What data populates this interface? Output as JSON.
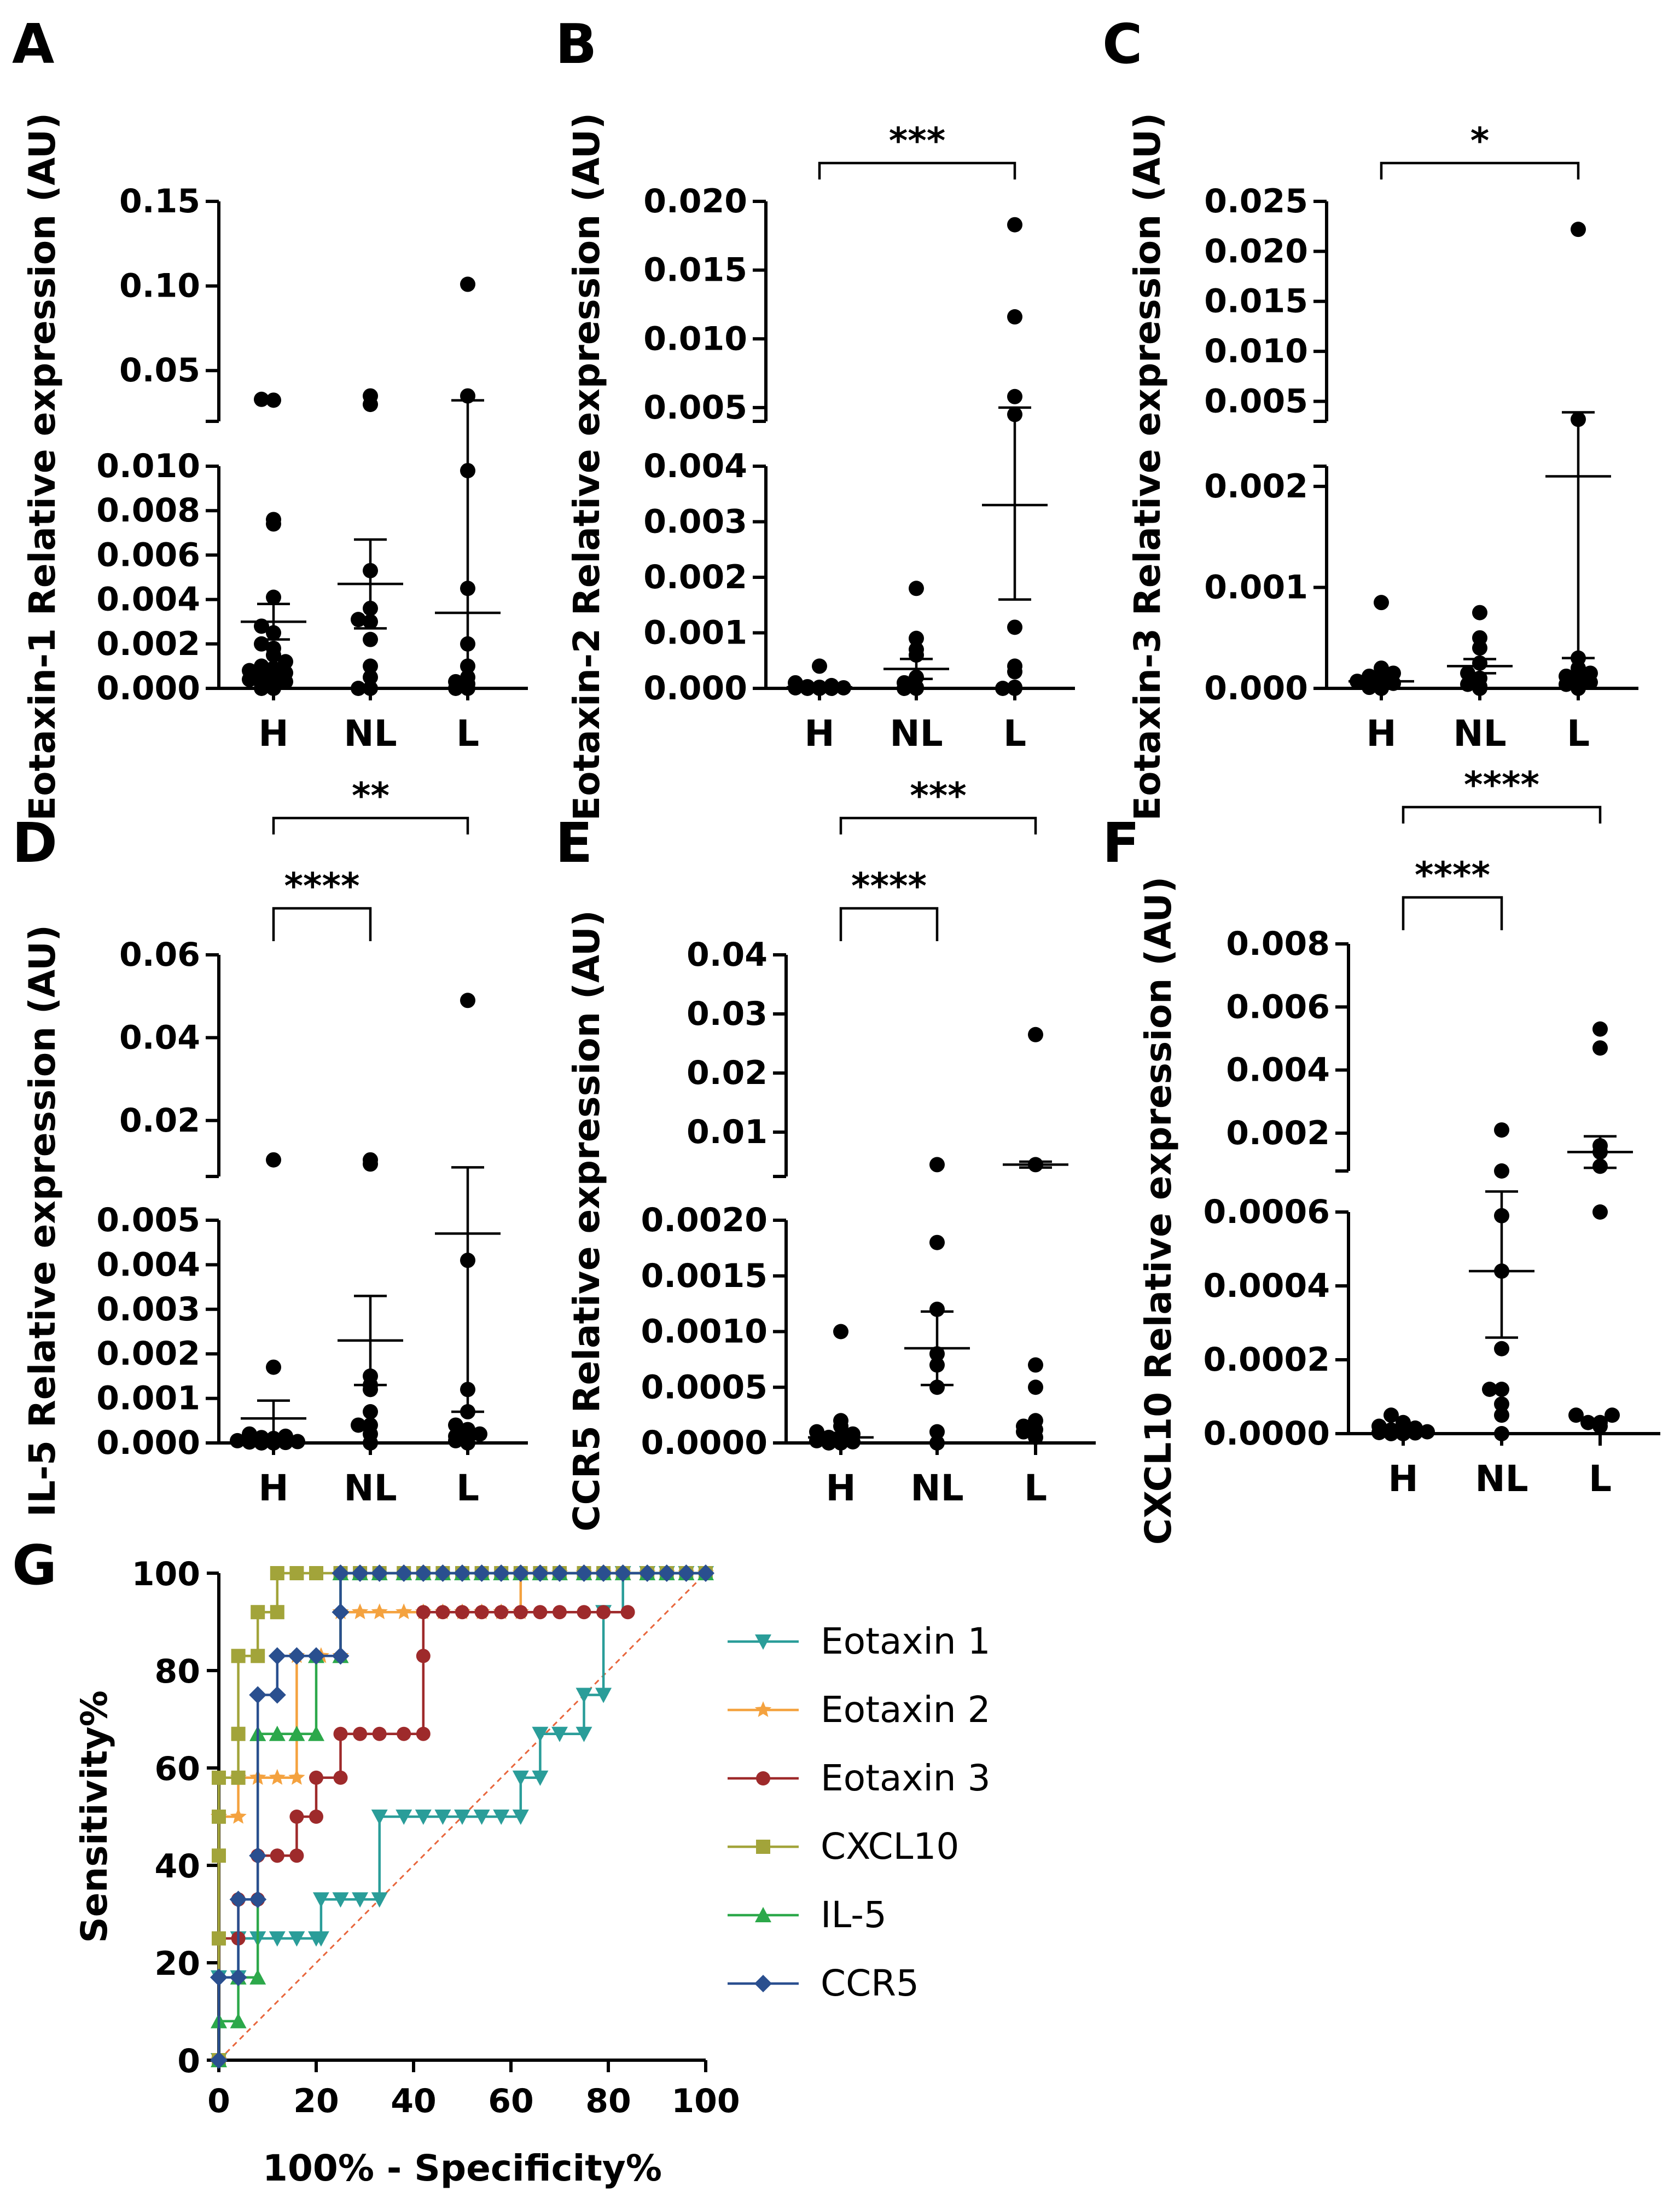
{
  "chart_data": [
    {
      "panel": "A",
      "type": "scatter",
      "ylabel": "Eotaxin-1 Relative expression (AU)",
      "categories": [
        "H",
        "NL",
        "L"
      ],
      "lower": {
        "ylim": [
          0,
          0.01
        ],
        "ticks": [
          0.0,
          0.002,
          0.004,
          0.006,
          0.008,
          0.01
        ],
        "tick_labels": [
          "0.000",
          "0.002",
          "0.004",
          "0.006",
          "0.008",
          "0.010"
        ]
      },
      "upper": {
        "ylim": [
          0.02,
          0.15
        ],
        "ticks": [
          0.05,
          0.1,
          0.15
        ],
        "tick_labels": [
          "0.05",
          "0.10",
          "0.15"
        ]
      },
      "groups": [
        {
          "category": "H",
          "mean": 0.003,
          "sem": 0.0008,
          "points": [
            0.0,
            0.0,
            0.0001,
            0.0002,
            0.0003,
            0.0004,
            0.0005,
            0.0006,
            0.0007,
            0.0008,
            0.0009,
            0.001,
            0.0012,
            0.0015,
            0.0018,
            0.002,
            0.0025,
            0.0028,
            0.0041,
            0.0074,
            0.0076,
            0.0325,
            0.033
          ]
        },
        {
          "category": "NL",
          "mean": 0.0047,
          "sem": 0.002,
          "points": [
            0.0,
            0.0,
            0.0005,
            0.001,
            0.0022,
            0.003,
            0.0031,
            0.0036,
            0.0053,
            0.03,
            0.035
          ]
        },
        {
          "category": "L",
          "mean": 0.0034,
          "sem": 0.029,
          "points": [
            0.0,
            0.0,
            0.0002,
            0.0003,
            0.0005,
            0.001,
            0.002,
            0.0045,
            0.0098,
            0.035,
            0.101
          ]
        }
      ],
      "significance": []
    },
    {
      "panel": "B",
      "type": "scatter",
      "ylabel": "Eotaxin-2 Relative expression (AU)",
      "categories": [
        "H",
        "NL",
        "L"
      ],
      "lower": {
        "ylim": [
          0,
          0.004
        ],
        "ticks": [
          0.0,
          0.001,
          0.002,
          0.003,
          0.004
        ],
        "tick_labels": [
          "0.000",
          "0.001",
          "0.002",
          "0.003",
          "0.004"
        ]
      },
      "upper": {
        "ylim": [
          0.004,
          0.02
        ],
        "ticks": [
          0.005,
          0.01,
          0.015,
          0.02
        ],
        "tick_labels": [
          "0.005",
          "0.010",
          "0.015",
          "0.020"
        ]
      },
      "groups": [
        {
          "category": "H",
          "mean": 2e-05,
          "sem": 3e-05,
          "points": [
            0.0,
            0.0,
            0.0,
            1e-05,
            1e-05,
            2e-05,
            3e-05,
            5e-05,
            0.0001,
            0.0004
          ]
        },
        {
          "category": "NL",
          "mean": 0.00035,
          "sem": 0.00018,
          "points": [
            0.0,
            0.0,
            2e-05,
            0.0001,
            0.0002,
            0.0006,
            0.0007,
            0.0009,
            0.0018
          ]
        },
        {
          "category": "L",
          "mean": 0.0033,
          "sem": 0.0017,
          "points": [
            0.0,
            0.0,
            2e-05,
            0.0003,
            0.0004,
            0.0011,
            0.0045,
            0.0058,
            0.0116,
            0.0183
          ]
        }
      ],
      "significance": [
        {
          "from": "H",
          "to": "L",
          "label": "***"
        }
      ]
    },
    {
      "panel": "C",
      "type": "scatter",
      "ylabel": "Eotaxin-3 Relative expression (AU)",
      "categories": [
        "H",
        "NL",
        "L"
      ],
      "lower": {
        "ylim": [
          0,
          0.0022
        ],
        "ticks": [
          0.0,
          0.001,
          0.002
        ],
        "tick_labels": [
          "0.000",
          "0.001",
          "0.002"
        ]
      },
      "upper": {
        "ylim": [
          0.003,
          0.025
        ],
        "ticks": [
          0.005,
          0.01,
          0.015,
          0.02,
          0.025
        ],
        "tick_labels": [
          "0.005",
          "0.010",
          "0.015",
          "0.020",
          "0.025"
        ]
      },
      "groups": [
        {
          "category": "H",
          "mean": 7e-05,
          "sem": 4e-05,
          "points": [
            0.0,
            1e-05,
            2e-05,
            3e-05,
            5e-05,
            7e-05,
            0.0001,
            0.00012,
            0.00015,
            0.0002,
            0.00085
          ]
        },
        {
          "category": "NL",
          "mean": 0.00022,
          "sem": 7e-05,
          "points": [
            0.0,
            2e-05,
            4e-05,
            0.0001,
            0.00015,
            0.00025,
            0.0004,
            0.0005,
            0.00075
          ]
        },
        {
          "category": "L",
          "mean": 0.0021,
          "sem": 0.0018,
          "points": [
            0.0,
            2e-05,
            4e-05,
            6e-05,
            0.0001,
            0.00012,
            0.00015,
            0.0002,
            0.0003,
            0.0032,
            0.0222
          ]
        }
      ],
      "significance": [
        {
          "from": "H",
          "to": "L",
          "label": "*"
        }
      ]
    },
    {
      "panel": "D",
      "type": "scatter",
      "ylabel": "IL-5 Relative expression (AU)",
      "categories": [
        "H",
        "NL",
        "L"
      ],
      "lower": {
        "ylim": [
          0,
          0.005
        ],
        "ticks": [
          0.0,
          0.001,
          0.002,
          0.003,
          0.004,
          0.005
        ],
        "tick_labels": [
          "0.000",
          "0.001",
          "0.002",
          "0.003",
          "0.004",
          "0.005"
        ]
      },
      "upper": {
        "ylim": [
          0.0065,
          0.06
        ],
        "ticks": [
          0.02,
          0.04,
          0.06
        ],
        "tick_labels": [
          "0.02",
          "0.04",
          "0.06"
        ]
      },
      "groups": [
        {
          "category": "H",
          "mean": 0.00055,
          "sem": 0.0004,
          "points": [
            0.0,
            0.0,
            1e-05,
            2e-05,
            3e-05,
            5e-05,
            0.0001,
            0.00012,
            0.00015,
            0.0002,
            0.0017,
            0.0105
          ]
        },
        {
          "category": "NL",
          "mean": 0.0023,
          "sem": 0.001,
          "points": [
            0.0,
            0.0002,
            0.0004,
            0.0004,
            0.0007,
            0.0012,
            0.0013,
            0.0015,
            0.0095,
            0.0105
          ]
        },
        {
          "category": "L",
          "mean": 0.0047,
          "sem": 0.004,
          "points": [
            0.0,
            5e-05,
            0.0001,
            0.00015,
            0.0002,
            0.0003,
            0.0004,
            0.0007,
            0.0012,
            0.0041,
            0.049
          ]
        }
      ],
      "significance": [
        {
          "from": "H",
          "to": "NL",
          "label": "****"
        },
        {
          "from": "H",
          "to": "L",
          "label": "**"
        }
      ]
    },
    {
      "panel": "E",
      "type": "scatter",
      "ylabel": "CCR5 Relative expression (AU)",
      "categories": [
        "H",
        "NL",
        "L"
      ],
      "lower": {
        "ylim": [
          0,
          0.002
        ],
        "ticks": [
          0.0,
          0.0005,
          0.001,
          0.0015,
          0.002
        ],
        "tick_labels": [
          "0.0000",
          "0.0005",
          "0.0010",
          "0.0015",
          "0.0020"
        ]
      },
      "upper": {
        "ylim": [
          0.0025,
          0.04
        ],
        "ticks": [
          0.01,
          0.02,
          0.03,
          0.04
        ],
        "tick_labels": [
          "0.01",
          "0.02",
          "0.03",
          "0.04"
        ]
      },
      "groups": [
        {
          "category": "H",
          "mean": 5e-05,
          "sem": 4e-05,
          "points": [
            0.0,
            0.0,
            1e-05,
            2e-05,
            3e-05,
            5e-05,
            8e-05,
            0.0001,
            0.00015,
            0.0002,
            0.001
          ]
        },
        {
          "category": "NL",
          "mean": 0.00085,
          "sem": 0.00033,
          "points": [
            0.0,
            0.0001,
            0.0005,
            0.0007,
            0.0008,
            0.0012,
            0.0018,
            0.0045
          ]
        },
        {
          "category": "L",
          "mean": 0.0045,
          "sem": 0.0005,
          "points": [
            5e-05,
            0.0001,
            0.00012,
            0.00015,
            0.0002,
            0.0005,
            0.0007,
            0.0045,
            0.0265
          ]
        }
      ],
      "significance": [
        {
          "from": "H",
          "to": "NL",
          "label": "****"
        },
        {
          "from": "H",
          "to": "L",
          "label": "***"
        }
      ]
    },
    {
      "panel": "F",
      "type": "scatter",
      "ylabel": "CXCL10 Relative expression (AU)",
      "categories": [
        "H",
        "NL",
        "L"
      ],
      "lower": {
        "ylim": [
          0,
          0.0006
        ],
        "ticks": [
          0.0,
          0.0002,
          0.0004,
          0.0006
        ],
        "tick_labels": [
          "0.0000",
          "0.0002",
          "0.0004",
          "0.0006"
        ]
      },
      "upper": {
        "ylim": [
          0.0008,
          0.008
        ],
        "ticks": [
          0.002,
          0.004,
          0.006,
          0.008
        ],
        "tick_labels": [
          "0.002",
          "0.004",
          "0.006",
          "0.008"
        ]
      },
      "groups": [
        {
          "category": "H",
          "mean": 0.0,
          "sem": 5e-06,
          "points": [
            0.0,
            0.0,
            2e-06,
            3e-06,
            5e-06,
            8e-06,
            1e-05,
            1.5e-05,
            2e-05,
            3e-05,
            5e-05
          ]
        },
        {
          "category": "NL",
          "mean": 0.00044,
          "sem": 0.00018,
          "points": [
            0.0,
            5e-05,
            8e-05,
            0.00012,
            0.00012,
            0.00023,
            0.00044,
            0.00059,
            0.0008,
            0.0021
          ]
        },
        {
          "category": "L",
          "mean": 0.0014,
          "sem": 0.0005,
          "points": [
            2e-05,
            3e-05,
            3e-05,
            5e-05,
            5e-05,
            0.0006,
            0.00095,
            0.0014,
            0.0016,
            0.0047,
            0.0053
          ]
        }
      ],
      "significance": [
        {
          "from": "H",
          "to": "NL",
          "label": "****"
        },
        {
          "from": "H",
          "to": "L",
          "label": "****"
        }
      ]
    },
    {
      "panel": "G",
      "type": "line",
      "xlabel": "100% - Specificity%",
      "ylabel": "Sensitivity%",
      "xlim": [
        0,
        100
      ],
      "ylim": [
        0,
        100
      ],
      "xticks": [
        0,
        20,
        40,
        60,
        80,
        100
      ],
      "yticks": [
        0,
        20,
        40,
        60,
        80,
        100
      ],
      "reference_line": true,
      "legend_position": "right",
      "series": [
        {
          "name": "Eotaxin 1",
          "color": "#2a9d99",
          "marker": "triangle-down",
          "x": [
            0,
            0,
            4,
            4,
            8,
            8,
            12,
            16,
            20,
            21,
            21,
            25,
            29,
            33,
            33,
            38,
            42,
            46,
            50,
            54,
            58,
            62,
            62,
            66,
            66,
            70,
            75,
            75,
            79,
            79,
            83,
            88,
            92,
            96,
            100
          ],
          "y": [
            0,
            17,
            17,
            25,
            25,
            25,
            25,
            25,
            25,
            25,
            33,
            33,
            33,
            33,
            50,
            50,
            50,
            50,
            50,
            50,
            50,
            50,
            58,
            58,
            67,
            67,
            67,
            75,
            75,
            92,
            100,
            100,
            100,
            100,
            100
          ]
        },
        {
          "name": "Eotaxin 2",
          "color": "#f4a23f",
          "marker": "star",
          "x": [
            0,
            0,
            4,
            4,
            8,
            8,
            12,
            16,
            16,
            21,
            25,
            25,
            29,
            33,
            38,
            42,
            46,
            50,
            54,
            58,
            62,
            62,
            66,
            70,
            75,
            79,
            83,
            88,
            92,
            96,
            100
          ],
          "y": [
            0,
            50,
            50,
            58,
            58,
            58,
            58,
            58,
            83,
            83,
            83,
            92,
            92,
            92,
            92,
            92,
            92,
            92,
            92,
            92,
            92,
            100,
            100,
            100,
            100,
            100,
            100,
            100,
            100,
            100,
            100
          ]
        },
        {
          "name": "Eotaxin 3",
          "color": "#9e2a2b",
          "marker": "circle",
          "x": [
            0,
            0,
            4,
            4,
            8,
            8,
            12,
            12,
            16,
            16,
            20,
            20,
            25,
            25,
            29,
            33,
            38,
            42,
            42,
            42,
            46,
            50,
            54,
            58,
            62,
            66,
            70,
            75,
            79,
            84
          ],
          "y": [
            0,
            25,
            25,
            33,
            33,
            42,
            42,
            42,
            42,
            50,
            50,
            58,
            58,
            67,
            67,
            67,
            67,
            67,
            83,
            92,
            92,
            92,
            92,
            92,
            92,
            92,
            92,
            92,
            92,
            92
          ]
        },
        {
          "name": "CXCL10",
          "color": "#a2a43a",
          "marker": "square",
          "x": [
            0,
            0,
            0,
            0,
            0,
            4,
            4,
            4,
            8,
            8,
            12,
            12,
            16,
            20,
            25,
            29,
            33,
            38,
            42,
            46,
            50,
            54,
            58,
            62,
            66,
            70,
            75,
            79,
            83,
            88,
            92,
            96,
            100
          ],
          "y": [
            0,
            25,
            42,
            50,
            58,
            58,
            67,
            83,
            83,
            92,
            92,
            100,
            100,
            100,
            100,
            100,
            100,
            100,
            100,
            100,
            100,
            100,
            100,
            100,
            100,
            100,
            100,
            100,
            100,
            100,
            100,
            100,
            100
          ]
        },
        {
          "name": "IL-5",
          "color": "#2ca84a",
          "marker": "triangle-up",
          "x": [
            0,
            0,
            4,
            4,
            8,
            8,
            8,
            12,
            16,
            20,
            20,
            25,
            25,
            29,
            33,
            38,
            42,
            46,
            50,
            54,
            58,
            62,
            66,
            70,
            75,
            79,
            83,
            88,
            92,
            96,
            100
          ],
          "y": [
            0,
            8,
            8,
            17,
            17,
            67,
            67,
            67,
            67,
            67,
            83,
            83,
            100,
            100,
            100,
            100,
            100,
            100,
            100,
            100,
            100,
            100,
            100,
            100,
            100,
            100,
            100,
            100,
            100,
            100,
            100
          ]
        },
        {
          "name": "CCR5",
          "color": "#2a4f8f",
          "marker": "diamond",
          "x": [
            0,
            0,
            4,
            4,
            8,
            8,
            8,
            12,
            12,
            16,
            20,
            25,
            25,
            25,
            29,
            33,
            38,
            42,
            46,
            50,
            54,
            58,
            62,
            66,
            70,
            75,
            79,
            83,
            88,
            92,
            96,
            100
          ],
          "y": [
            0,
            17,
            17,
            33,
            33,
            42,
            75,
            75,
            83,
            83,
            83,
            83,
            92,
            100,
            100,
            100,
            100,
            100,
            100,
            100,
            100,
            100,
            100,
            100,
            100,
            100,
            100,
            100,
            100,
            100,
            100,
            100
          ]
        }
      ]
    }
  ]
}
